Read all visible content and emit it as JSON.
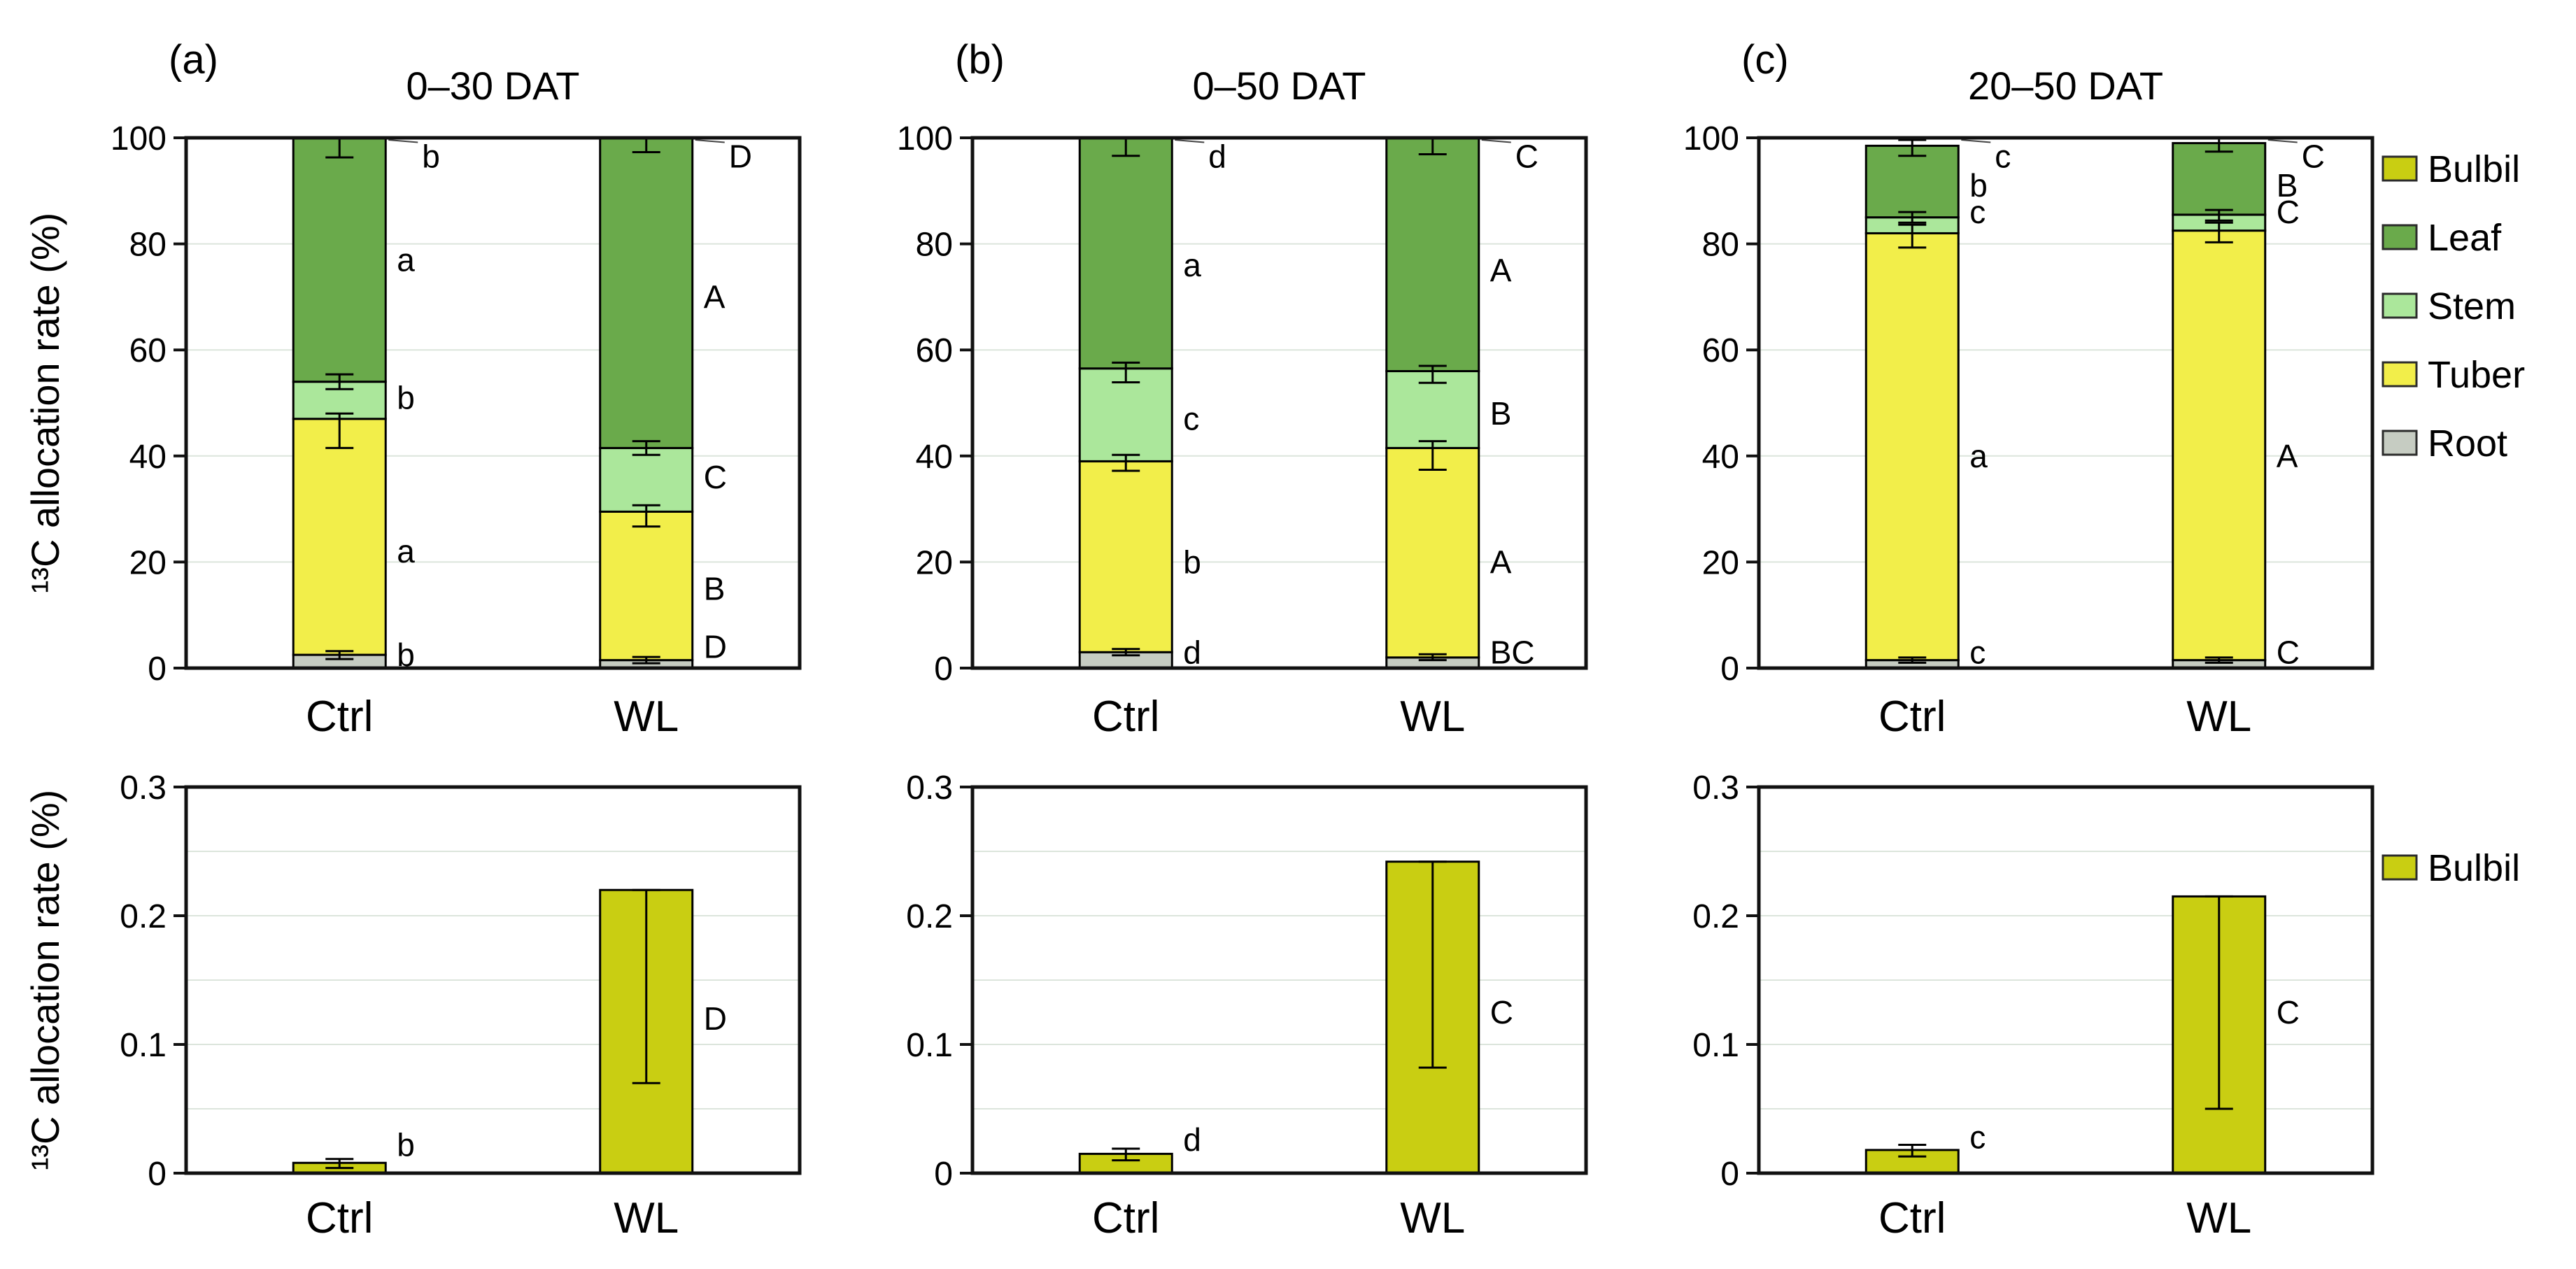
{
  "chart_data": {
    "type": "bar",
    "description": "Stacked bar figure of 13C allocation rate (%) with three periods (columns) and two magnification rows",
    "top_row": {
      "ylabel": "¹³C allocation rate (%)",
      "ylim": [
        0,
        100
      ],
      "yticks": [
        0,
        20,
        40,
        60,
        80,
        100
      ],
      "gridlines": [
        20,
        40,
        60,
        80
      ],
      "categories": [
        "Ctrl",
        "WL"
      ],
      "stack_order": [
        "Root",
        "Tuber",
        "Stem",
        "Leaf"
      ],
      "panels": [
        {
          "tag": "(a)",
          "title": "0–30 DAT",
          "bars": [
            {
              "category": "Ctrl",
              "segments": [
                {
                  "part": "Root",
                  "value": 2.5
                },
                {
                  "part": "Tuber",
                  "value": 44.5
                },
                {
                  "part": "Stem",
                  "value": 7.0
                },
                {
                  "part": "Leaf",
                  "value": 46.0
                }
              ],
              "error_bars": [
                {
                  "lo": 1.7,
                  "hi": 3.2
                },
                {
                  "lo": 41.5,
                  "hi": 48.0
                },
                {
                  "lo": 52.6,
                  "hi": 55.4
                },
                {
                  "lo": 96.3,
                  "hi": 100.0
                }
              ],
              "letters": [
                {
                  "text": "b",
                  "y": 96.5,
                  "leader": true
                },
                {
                  "text": "a",
                  "y": 77
                },
                {
                  "text": "b",
                  "y": 51
                },
                {
                  "text": "a",
                  "y": 22
                },
                {
                  "text": "b",
                  "y": 2.5
                }
              ]
            },
            {
              "category": "WL",
              "segments": [
                {
                  "part": "Root",
                  "value": 1.5
                },
                {
                  "part": "Tuber",
                  "value": 28.0
                },
                {
                  "part": "Stem",
                  "value": 12.0
                },
                {
                  "part": "Leaf",
                  "value": 58.5
                }
              ],
              "error_bars": [
                {
                  "lo": 0.9,
                  "hi": 2.1
                },
                {
                  "lo": 26.7,
                  "hi": 30.7
                },
                {
                  "lo": 40.2,
                  "hi": 42.8
                },
                {
                  "lo": 97.3,
                  "hi": 100.0
                }
              ],
              "letters": [
                {
                  "text": "D",
                  "y": 96.5,
                  "leader": true
                },
                {
                  "text": "A",
                  "y": 70
                },
                {
                  "text": "C",
                  "y": 36
                },
                {
                  "text": "B",
                  "y": 15
                },
                {
                  "text": "D",
                  "y": 4
                }
              ]
            }
          ]
        },
        {
          "tag": "(b)",
          "title": "0–50 DAT",
          "bars": [
            {
              "category": "Ctrl",
              "segments": [
                {
                  "part": "Root",
                  "value": 3.0
                },
                {
                  "part": "Tuber",
                  "value": 36.0
                },
                {
                  "part": "Stem",
                  "value": 17.5
                },
                {
                  "part": "Leaf",
                  "value": 43.5
                }
              ],
              "error_bars": [
                {
                  "lo": 2.4,
                  "hi": 3.6
                },
                {
                  "lo": 37.2,
                  "hi": 40.2
                },
                {
                  "lo": 53.9,
                  "hi": 57.6
                },
                {
                  "lo": 96.6,
                  "hi": 100.0
                }
              ],
              "letters": [
                {
                  "text": "d",
                  "y": 96.5,
                  "leader": true
                },
                {
                  "text": "a",
                  "y": 76
                },
                {
                  "text": "c",
                  "y": 47
                },
                {
                  "text": "b",
                  "y": 20
                },
                {
                  "text": "d",
                  "y": 3
                }
              ]
            },
            {
              "category": "WL",
              "segments": [
                {
                  "part": "Root",
                  "value": 2.0
                },
                {
                  "part": "Tuber",
                  "value": 39.5
                },
                {
                  "part": "Stem",
                  "value": 14.5
                },
                {
                  "part": "Leaf",
                  "value": 44.0
                }
              ],
              "error_bars": [
                {
                  "lo": 1.5,
                  "hi": 2.6
                },
                {
                  "lo": 37.4,
                  "hi": 42.8
                },
                {
                  "lo": 53.8,
                  "hi": 57.0
                },
                {
                  "lo": 96.9,
                  "hi": 100.0
                }
              ],
              "letters": [
                {
                  "text": "C",
                  "y": 96.5,
                  "leader": true
                },
                {
                  "text": "A",
                  "y": 75
                },
                {
                  "text": "B",
                  "y": 48
                },
                {
                  "text": "A",
                  "y": 20
                },
                {
                  "text": "BC",
                  "y": 3
                }
              ]
            }
          ]
        },
        {
          "tag": "(c)",
          "title": "20–50 DAT",
          "bars": [
            {
              "category": "Ctrl",
              "segments": [
                {
                  "part": "Root",
                  "value": 1.5
                },
                {
                  "part": "Tuber",
                  "value": 80.5
                },
                {
                  "part": "Stem",
                  "value": 3.0
                },
                {
                  "part": "Leaf",
                  "value": 13.5
                }
              ],
              "error_bars": [
                {
                  "lo": 1.0,
                  "hi": 2.0
                },
                {
                  "lo": 79.3,
                  "hi": 83.6
                },
                {
                  "lo": 84.0,
                  "hi": 86.0
                },
                {
                  "lo": 96.6,
                  "hi": 99.6
                }
              ],
              "letters": [
                {
                  "text": "c",
                  "y": 96.5,
                  "leader": true
                },
                {
                  "text": "b",
                  "y": 91
                },
                {
                  "text": "c",
                  "y": 86
                },
                {
                  "text": "a",
                  "y": 40
                },
                {
                  "text": "c",
                  "y": 3
                }
              ]
            },
            {
              "category": "WL",
              "segments": [
                {
                  "part": "Root",
                  "value": 1.5
                },
                {
                  "part": "Tuber",
                  "value": 81.0
                },
                {
                  "part": "Stem",
                  "value": 3.0
                },
                {
                  "part": "Leaf",
                  "value": 13.5
                }
              ],
              "error_bars": [
                {
                  "lo": 1.0,
                  "hi": 2.0
                },
                {
                  "lo": 80.3,
                  "hi": 84.0
                },
                {
                  "lo": 84.4,
                  "hi": 86.4
                },
                {
                  "lo": 97.4,
                  "hi": 100.0
                }
              ],
              "letters": [
                {
                  "text": "C",
                  "y": 96.5,
                  "leader": true
                },
                {
                  "text": "B",
                  "y": 91
                },
                {
                  "text": "C",
                  "y": 86
                },
                {
                  "text": "A",
                  "y": 40
                },
                {
                  "text": "C",
                  "y": 3
                }
              ]
            }
          ]
        }
      ]
    },
    "bottom_row": {
      "ylabel": "¹³C allocation rate (%)",
      "ylim": [
        0,
        0.3
      ],
      "yticks": [
        0,
        0.1,
        0.2,
        0.3
      ],
      "ytick_labels": [
        "0",
        "0.1",
        "0.2",
        "0.3"
      ],
      "gridlines": [
        0.05,
        0.1,
        0.15,
        0.2,
        0.25
      ],
      "categories": [
        "Ctrl",
        "WL"
      ],
      "series_part": "Bulbil",
      "panels": [
        {
          "bars": [
            {
              "category": "Ctrl",
              "value": 0.008,
              "error": {
                "lo": 0.004,
                "hi": 0.011
              },
              "letter": {
                "text": "b",
                "y": 0.022
              }
            },
            {
              "category": "WL",
              "value": 0.22,
              "error": {
                "lo": 0.07,
                "hi": 0.22
              },
              "letter": {
                "text": "D",
                "y": 0.12
              }
            }
          ]
        },
        {
          "bars": [
            {
              "category": "Ctrl",
              "value": 0.015,
              "error": {
                "lo": 0.01,
                "hi": 0.019
              },
              "letter": {
                "text": "d",
                "y": 0.026
              }
            },
            {
              "category": "WL",
              "value": 0.242,
              "error": {
                "lo": 0.082,
                "hi": 0.242
              },
              "letter": {
                "text": "C",
                "y": 0.125
              }
            }
          ]
        },
        {
          "bars": [
            {
              "category": "Ctrl",
              "value": 0.018,
              "error": {
                "lo": 0.013,
                "hi": 0.022
              },
              "letter": {
                "text": "c",
                "y": 0.028
              }
            },
            {
              "category": "WL",
              "value": 0.215,
              "error": {
                "lo": 0.05,
                "hi": 0.215
              },
              "letter": {
                "text": "C",
                "y": 0.125
              }
            }
          ]
        }
      ]
    },
    "legend_top": {
      "items": [
        {
          "label": "Bulbil",
          "color": "#c9ce12"
        },
        {
          "label": "Leaf",
          "color": "#6aaa4b"
        },
        {
          "label": "Stem",
          "color": "#abe79b"
        },
        {
          "label": "Tuber",
          "color": "#f2ee4a"
        },
        {
          "label": "Root",
          "color": "#c6ccc2"
        }
      ]
    },
    "legend_bottom": {
      "items": [
        {
          "label": "Bulbil",
          "color": "#c9ce12"
        }
      ]
    },
    "colors": {
      "Bulbil": "#c9ce12",
      "Leaf": "#6aaa4b",
      "Stem": "#abe79b",
      "Tuber": "#f2ee4a",
      "Root": "#c6ccc2"
    },
    "frame_color": "#111111",
    "grid_color": "#dce5dc",
    "layout_hints": {
      "grid": "on",
      "legend_position": "right",
      "rows": 2,
      "cols": 3
    }
  }
}
